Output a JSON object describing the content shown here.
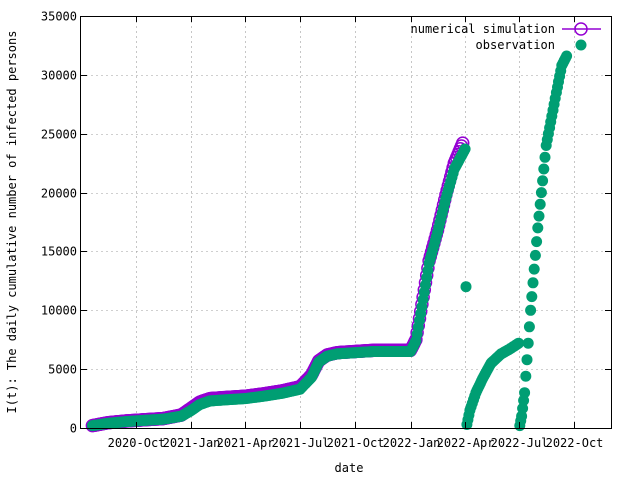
{
  "chart_data": {
    "type": "scatter",
    "xlabel": "date",
    "ylabel": "I(t): The daily cumulative number of infected persons",
    "xlim": [
      "2020-07-01",
      "2022-12-01"
    ],
    "ylim": [
      0,
      35000
    ],
    "y_ticks": [
      0,
      5000,
      10000,
      15000,
      20000,
      25000,
      30000,
      35000
    ],
    "y_tick_labels": [
      "0",
      "5000",
      "10000",
      "15000",
      "20000",
      "25000",
      "30000",
      "35000"
    ],
    "x_ticks": [
      "2020-10-01",
      "2021-01-01",
      "2021-04-01",
      "2021-07-01",
      "2021-10-01",
      "2022-01-01",
      "2022-04-01",
      "2022-07-01",
      "2022-10-01"
    ],
    "x_tick_labels": [
      "2020-Oct",
      "2021-Jan",
      "2021-Apr",
      "2021-Jul",
      "2021-Oct",
      "2022-Jan",
      "2022-Apr",
      "2022-Jul",
      "2022-Oct"
    ],
    "grid": true,
    "legend_position": "top-right",
    "series": [
      {
        "name": "numerical simulation",
        "color": "#9400d3",
        "marker": "open-circle-with-line",
        "x": [
          "2020-07-20",
          "2020-08-15",
          "2020-09-15",
          "2020-10-15",
          "2020-11-15",
          "2020-12-15",
          "2021-01-01",
          "2021-01-15",
          "2021-02-01",
          "2021-03-01",
          "2021-04-01",
          "2021-05-01",
          "2021-06-01",
          "2021-07-01",
          "2021-07-20",
          "2021-08-01",
          "2021-08-15",
          "2021-09-01",
          "2021-10-01",
          "2021-11-01",
          "2021-12-01",
          "2022-01-01",
          "2022-01-10",
          "2022-01-20",
          "2022-02-01",
          "2022-02-15",
          "2022-03-01",
          "2022-03-15",
          "2022-03-29"
        ],
        "values": [
          200,
          450,
          600,
          700,
          800,
          1100,
          1700,
          2200,
          2500,
          2600,
          2700,
          2900,
          3150,
          3500,
          4500,
          5700,
          6200,
          6400,
          6500,
          6600,
          6600,
          6600,
          7500,
          10500,
          14200,
          16800,
          19800,
          22500,
          24200
        ]
      },
      {
        "name": "observation",
        "color": "#009e73",
        "marker": "filled-circle",
        "x": [
          "2020-07-20",
          "2020-08-15",
          "2020-09-15",
          "2020-10-15",
          "2020-11-15",
          "2020-12-15",
          "2021-01-01",
          "2021-01-15",
          "2021-02-01",
          "2021-03-01",
          "2021-04-01",
          "2021-05-01",
          "2021-06-01",
          "2021-07-01",
          "2021-07-20",
          "2021-08-01",
          "2021-08-15",
          "2021-09-01",
          "2021-10-01",
          "2021-11-01",
          "2021-12-01",
          "2022-01-01",
          "2022-01-10",
          "2022-01-20",
          "2022-02-01",
          "2022-02-15",
          "2022-03-01",
          "2022-03-15",
          "2022-04-02",
          "2022-04-05",
          "2022-04-10",
          "2022-04-20",
          "2022-05-01",
          "2022-05-15",
          "2022-06-01",
          "2022-06-15",
          "2022-06-30",
          "2022-07-02",
          "2022-07-05",
          "2022-07-10",
          "2022-07-20",
          "2022-08-01",
          "2022-08-15",
          "2022-09-01",
          "2022-09-10",
          "2022-09-18"
        ],
        "values": [
          200,
          400,
          550,
          650,
          750,
          1000,
          1500,
          2000,
          2300,
          2400,
          2500,
          2700,
          2950,
          3300,
          4300,
          5600,
          6100,
          6300,
          6400,
          6500,
          6500,
          6500,
          7400,
          10300,
          14000,
          16600,
          19500,
          22000,
          23700,
          300,
          1500,
          3000,
          4200,
          5500,
          6300,
          6700,
          7200,
          200,
          1000,
          3000,
          10000,
          17000,
          24000,
          28500,
          30800,
          31600
        ]
      }
    ]
  }
}
